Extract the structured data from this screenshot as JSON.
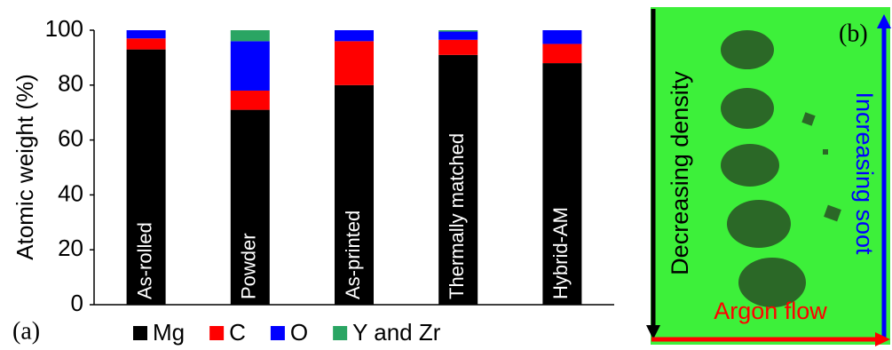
{
  "chart_data": {
    "type": "stacked_bar",
    "panel_label": "(a)",
    "y_label": "Atomic weight (%)",
    "categories": [
      "As-rolled",
      "Powder",
      "As-printed",
      "Thermally matched",
      "Hybrid-AM"
    ],
    "series": [
      {
        "name": "Mg",
        "color": "#000000",
        "values": [
          93,
          71,
          80,
          91,
          88
        ]
      },
      {
        "name": "C",
        "color": "#ff0000",
        "values": [
          4,
          7,
          16,
          5.5,
          7
        ]
      },
      {
        "name": "O",
        "color": "#0000ff",
        "values": [
          3,
          18,
          4,
          3,
          5
        ]
      },
      {
        "name": "Y and Zr",
        "color": "#2aa563",
        "values": [
          0,
          4,
          0,
          0.5,
          0
        ]
      }
    ],
    "ylim": [
      0,
      100
    ],
    "yticks": [
      0,
      20,
      40,
      60,
      80,
      100
    ],
    "grid": false
  },
  "panel_b": {
    "label": "(b)",
    "left_arrow": "Decreasing density",
    "right_arrow": "Increasing soot",
    "bottom_arrow": "Argon flow"
  }
}
